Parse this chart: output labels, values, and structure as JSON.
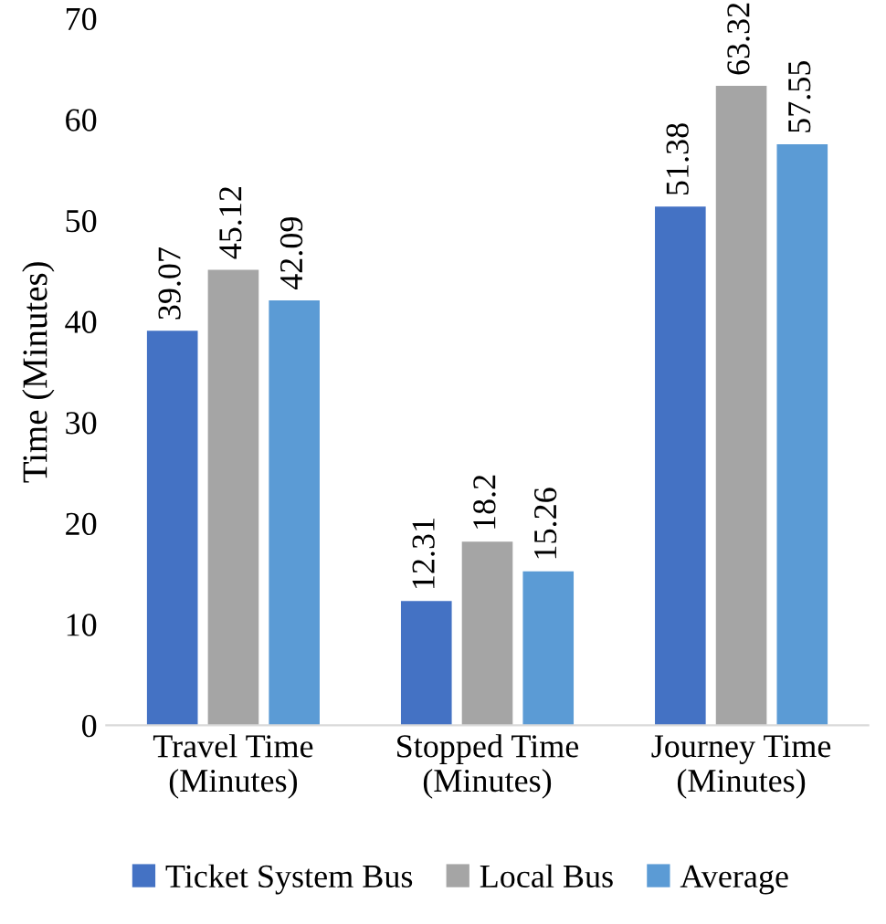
{
  "chart_data": {
    "type": "bar",
    "ylabel": "Time (Minutes)",
    "categories": [
      "Travel Time\n(Minutes)",
      "Stopped Time\n(Minutes)",
      "Journey Time\n(Minutes)"
    ],
    "series": [
      {
        "name": "Ticket System Bus",
        "color": "#4472c4",
        "values": [
          39.07,
          12.31,
          51.38
        ]
      },
      {
        "name": "Local Bus",
        "color": "#a5a5a5",
        "values": [
          45.12,
          18.2,
          63.32
        ]
      },
      {
        "name": "Average",
        "color": "#5b9bd5",
        "values": [
          42.09,
          15.26,
          57.55
        ]
      }
    ],
    "ylim": [
      0,
      70
    ],
    "yticks": [
      0,
      10,
      20,
      30,
      40,
      50,
      60,
      70
    ],
    "data_labels": true,
    "legend": "bottom",
    "grid": false
  }
}
